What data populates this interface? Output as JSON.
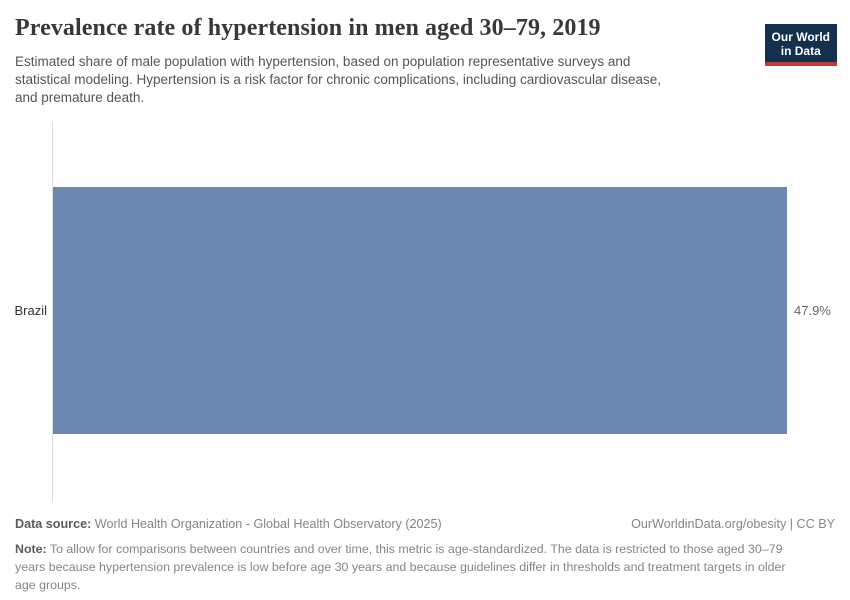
{
  "header": {
    "title": "Prevalence rate of hypertension in men aged 30–79, 2019",
    "subtitle_lines": [
      "Estimated share of male population with hypertension, based on population representative surveys and",
      "statistical modeling. Hypertension is a risk factor for chronic complications, including cardiovascular disease,",
      "and premature death."
    ],
    "logo": {
      "line1": "Our World",
      "line2": "in Data"
    }
  },
  "chart_data": {
    "type": "bar",
    "orientation": "horizontal",
    "title": "Prevalence rate of hypertension in men aged 30–79, 2019",
    "subtitle": "Estimated share of male population with hypertension, based on population representative surveys and statistical modeling. Hypertension is a risk factor for chronic complications, including cardiovascular disease, and premature death.",
    "categories": [
      "Brazil"
    ],
    "values": [
      47.9
    ],
    "value_labels": [
      "47.9%"
    ],
    "xlabel": "",
    "ylabel": "",
    "xlim": [
      0,
      47.9
    ],
    "grid": false,
    "legend": false,
    "bar_color": "#6c87b2"
  },
  "footer": {
    "datasource_label": "Data source:",
    "datasource_text": "World Health Organization - Global Health Observatory (2025)",
    "attribution": "OurWorldinData.org/obesity | CC BY",
    "note_label": "Note:",
    "note_lines": [
      "To allow for comparisons between countries and over time, this metric is age-standardized. The data is restricted to those aged 30–79",
      "years because hypertension prevalence is low before age 30 years and because guidelines differ in thresholds and treatment targets in older",
      "age groups."
    ]
  },
  "colors": {
    "bar": "#6c87b2",
    "title": "#383838",
    "subtitle": "#555555",
    "footer": "#858585",
    "logo_background": "#14304f",
    "logo_accent": "#be3a32",
    "axis_line": "#dcdcdc"
  }
}
